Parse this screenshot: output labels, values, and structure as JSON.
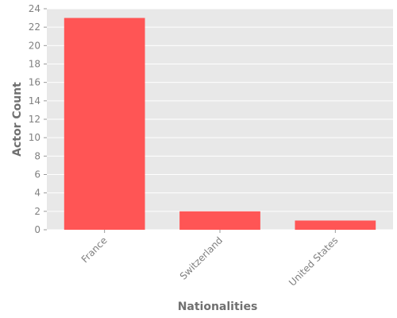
{
  "chart_data": {
    "type": "bar",
    "title": "",
    "xlabel": "Nationalities",
    "ylabel": "Actor Count",
    "categories": [
      "France",
      "Switzerland",
      "United States"
    ],
    "values": [
      23,
      2,
      1
    ],
    "ylim": [
      0,
      24
    ],
    "yticks": [
      0,
      2,
      4,
      6,
      8,
      10,
      12,
      14,
      16,
      18,
      20,
      22,
      24
    ],
    "grid": true,
    "legend": "none",
    "colors": {
      "bar": "#ff5555",
      "plot_background": "#e8e8e8",
      "grid": "#ffffff"
    }
  }
}
